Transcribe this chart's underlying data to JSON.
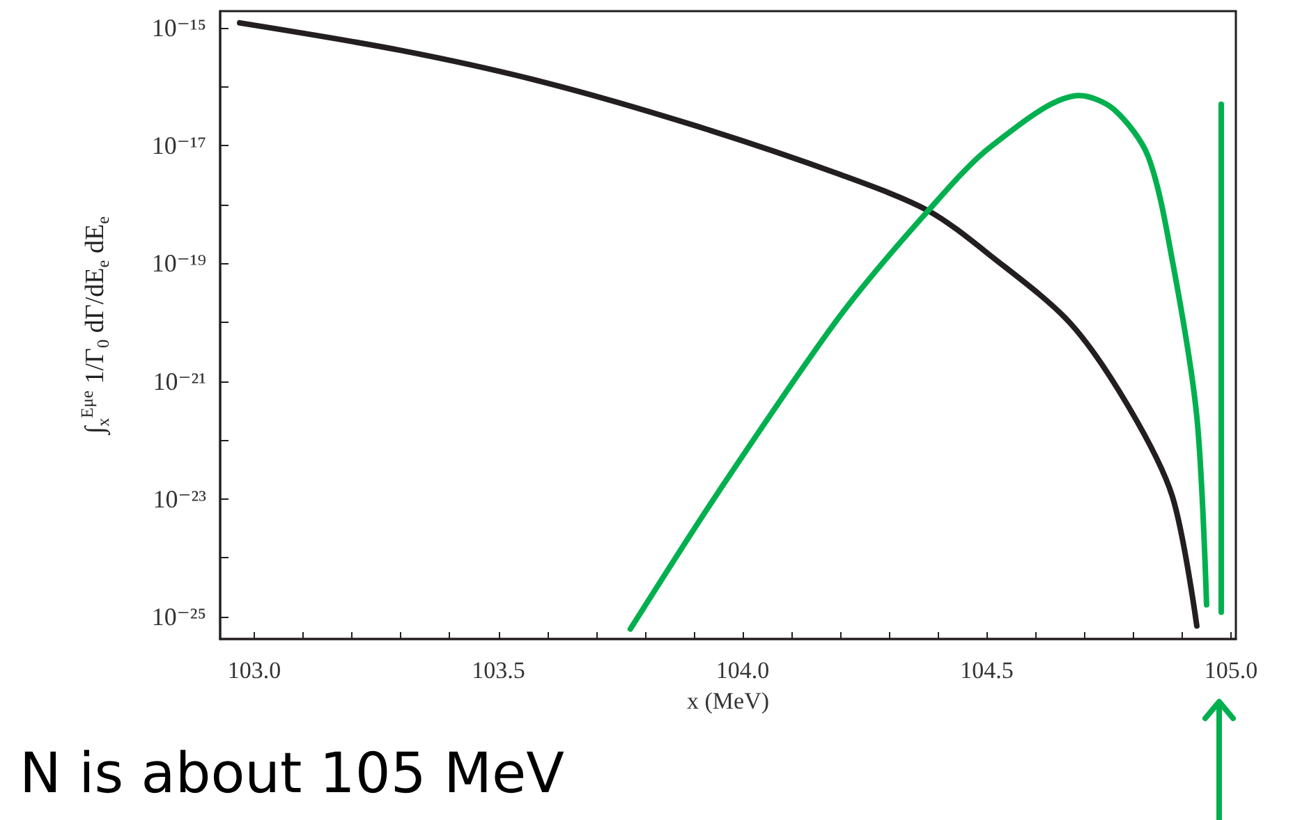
{
  "chart_data": {
    "type": "line",
    "xlabel": "x (MeV)",
    "ylabel": "∫$_{x}$$^{Eμe}$ 1/Γ$_{0}$ dΓ/dE$_{e}$ dE$_{e}$",
    "annotations": [
      "N is about 105 MeV"
    ],
    "log": "y",
    "grid": false,
    "marker": "none",
    "line_style": "solid",
    "xlim": [
      102.93,
      105.01
    ],
    "xticks": [
      {
        "value": 103,
        "label": "103.0"
      },
      {
        "value": 103.1,
        "label": null
      },
      {
        "value": 103.2,
        "label": null
      },
      {
        "value": 103.3,
        "label": null
      },
      {
        "value": 103.4,
        "label": null
      },
      {
        "value": 103.5,
        "label": "103.5"
      },
      {
        "value": 103.6,
        "label": null
      },
      {
        "value": 103.7,
        "label": null
      },
      {
        "value": 103.8,
        "label": null
      },
      {
        "value": 103.9,
        "label": null
      },
      {
        "value": 104,
        "label": "104.0"
      },
      {
        "value": 104.1,
        "label": null
      },
      {
        "value": 104.2,
        "label": null
      },
      {
        "value": 104.3,
        "label": null
      },
      {
        "value": 104.4,
        "label": null
      },
      {
        "value": 104.5,
        "label": "104.5"
      },
      {
        "value": 104.6,
        "label": null
      },
      {
        "value": 104.7,
        "label": null
      },
      {
        "value": 104.8,
        "label": null
      },
      {
        "value": 104.9,
        "label": null
      },
      {
        "value": 105,
        "label": "105.0"
      }
    ],
    "ylim": [
      4.2e-26,
      1.9e-15
    ],
    "yticks": [
      {
        "value": 1e-25,
        "label": "10⁻²⁵"
      },
      {
        "value": 1e-24,
        "label": null
      },
      {
        "value": 1e-23,
        "label": "10⁻²³"
      },
      {
        "value": 1e-22,
        "label": null
      },
      {
        "value": 1e-21,
        "label": "10⁻²¹"
      },
      {
        "value": 1e-20,
        "label": null
      },
      {
        "value": 1e-19,
        "label": "10⁻¹⁹"
      },
      {
        "value": 1e-18,
        "label": null
      },
      {
        "value": 1e-17,
        "label": "10⁻¹⁷"
      },
      {
        "value": 1e-16,
        "label": null
      },
      {
        "value": 1e-15,
        "label": "10⁻¹⁵"
      }
    ],
    "series": [
      {
        "color": "#231f20",
        "x": [
          102.97,
          103.3,
          103.59,
          103.9,
          104.2,
          104.38,
          104.51,
          104.67,
          104.79,
          104.88,
          104.93
        ],
        "values": [
          1.2e-15,
          4.1e-16,
          1.2e-16,
          2.2e-17,
          3.2e-18,
          7.8e-19,
          1.3e-19,
          9.8e-21,
          3.7e-22,
          1.1e-23,
          7e-26
        ]
      },
      {
        "color": "#00b04f",
        "x": [
          103.77,
          103.95,
          104.2,
          104.38,
          104.51,
          104.69,
          104.76,
          104.83,
          104.88,
          104.93,
          104.95
        ],
        "values": [
          6.2e-26,
          1.3e-23,
          1.3e-20,
          7.8e-19,
          9.8e-18,
          7e-17,
          4.1e-17,
          6.6e-18,
          1.1e-19,
          2.5e-22,
          1.6e-25
        ]
      },
      {
        "color": "#00b04f",
        "x": [
          104.98,
          104.98
        ],
        "values": [
          1.2e-25,
          5e-17
        ]
      }
    ]
  }
}
